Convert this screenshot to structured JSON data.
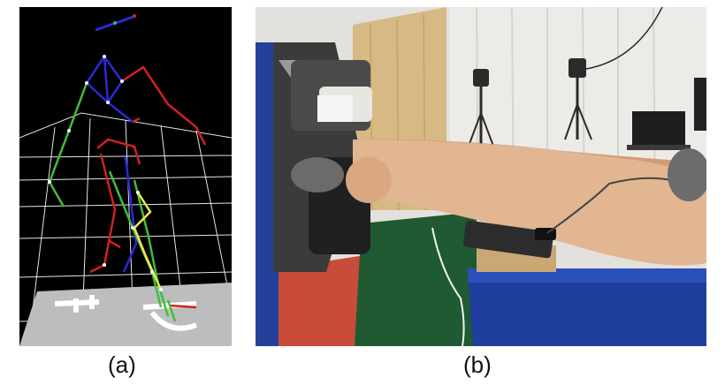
{
  "figure": {
    "panels": [
      {
        "id": "a",
        "caption": "(a)",
        "content": "motion-capture-skeleton-render"
      },
      {
        "id": "b",
        "caption": "(b)",
        "content": "knee-dynamometer-test-photo"
      }
    ],
    "colors": {
      "background": "#ffffff",
      "mocap_bg": "#000000",
      "grid": "#e6e6e6",
      "skeleton_green": "#3fbf3f",
      "skeleton_blue": "#2a2ad8",
      "skeleton_red": "#d42020",
      "skeleton_yellow": "#f2e64a",
      "bench_blue": "#1f3e9e",
      "table_green": "#1f5a33"
    }
  }
}
